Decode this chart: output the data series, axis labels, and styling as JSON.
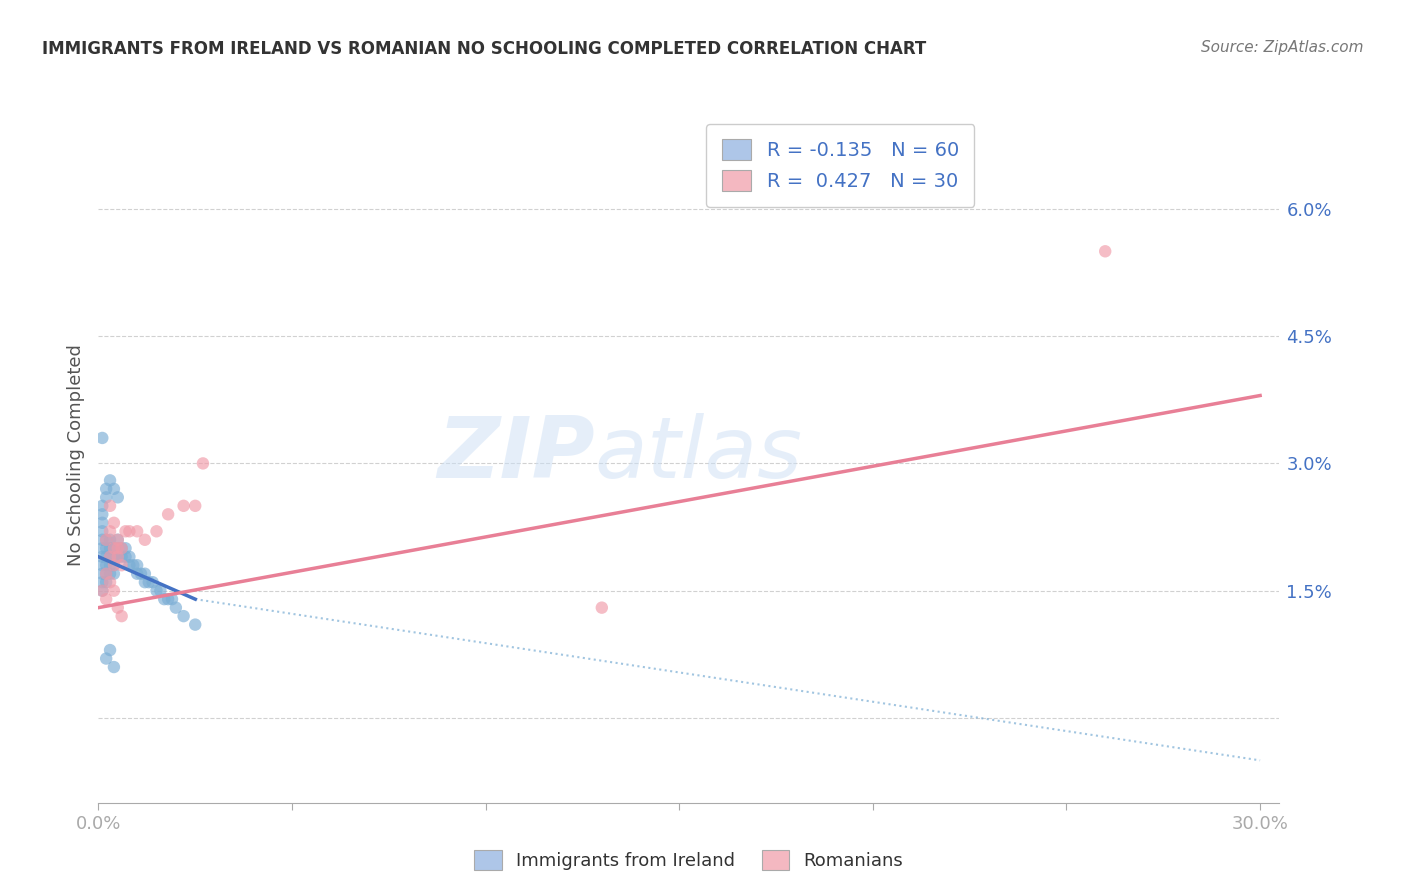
{
  "title": "IMMIGRANTS FROM IRELAND VS ROMANIAN NO SCHOOLING COMPLETED CORRELATION CHART",
  "source": "Source: ZipAtlas.com",
  "ylabel": "No Schooling Completed",
  "legend_entries": [
    {
      "label": "R = -0.135   N = 60",
      "color_fill": "#aec6e8"
    },
    {
      "label": "R =  0.427   N = 30",
      "color_fill": "#f4b8c1"
    }
  ],
  "bottom_legend": [
    {
      "label": "Immigrants from Ireland",
      "color_fill": "#aec6e8"
    },
    {
      "label": "Romanians",
      "color_fill": "#f4b8c1"
    }
  ],
  "y_ticks": [
    0.0,
    0.015,
    0.03,
    0.045,
    0.06
  ],
  "y_tick_labels": [
    "",
    "1.5%",
    "3.0%",
    "4.5%",
    "6.0%"
  ],
  "x_range": [
    0.0,
    0.305
  ],
  "y_range": [
    -0.01,
    0.072
  ],
  "blue_scatter_x": [
    0.001,
    0.001,
    0.001,
    0.001,
    0.001,
    0.001,
    0.001,
    0.001,
    0.002,
    0.002,
    0.002,
    0.002,
    0.002,
    0.002,
    0.003,
    0.003,
    0.003,
    0.003,
    0.003,
    0.004,
    0.004,
    0.004,
    0.004,
    0.005,
    0.005,
    0.005,
    0.006,
    0.006,
    0.007,
    0.007,
    0.008,
    0.008,
    0.009,
    0.01,
    0.01,
    0.011,
    0.012,
    0.012,
    0.013,
    0.014,
    0.015,
    0.016,
    0.017,
    0.018,
    0.019,
    0.02,
    0.022,
    0.025,
    0.001,
    0.001,
    0.001,
    0.002,
    0.002,
    0.003,
    0.004,
    0.005,
    0.001,
    0.002,
    0.003,
    0.004
  ],
  "blue_scatter_y": [
    0.018,
    0.019,
    0.02,
    0.021,
    0.022,
    0.017,
    0.016,
    0.015,
    0.018,
    0.019,
    0.02,
    0.021,
    0.017,
    0.016,
    0.019,
    0.02,
    0.021,
    0.018,
    0.017,
    0.02,
    0.019,
    0.018,
    0.017,
    0.019,
    0.02,
    0.021,
    0.02,
    0.019,
    0.019,
    0.02,
    0.018,
    0.019,
    0.018,
    0.018,
    0.017,
    0.017,
    0.016,
    0.017,
    0.016,
    0.016,
    0.015,
    0.015,
    0.014,
    0.014,
    0.014,
    0.013,
    0.012,
    0.011,
    0.025,
    0.024,
    0.023,
    0.026,
    0.027,
    0.028,
    0.027,
    0.026,
    0.033,
    0.007,
    0.008,
    0.006
  ],
  "pink_scatter_x": [
    0.001,
    0.002,
    0.003,
    0.004,
    0.005,
    0.006,
    0.002,
    0.003,
    0.004,
    0.005,
    0.006,
    0.007,
    0.003,
    0.004,
    0.005,
    0.008,
    0.01,
    0.012,
    0.015,
    0.018,
    0.022,
    0.025,
    0.027,
    0.13,
    0.26,
    0.002,
    0.003,
    0.004,
    0.005,
    0.006
  ],
  "pink_scatter_y": [
    0.015,
    0.017,
    0.019,
    0.018,
    0.02,
    0.02,
    0.021,
    0.022,
    0.02,
    0.019,
    0.018,
    0.022,
    0.025,
    0.023,
    0.021,
    0.022,
    0.022,
    0.021,
    0.022,
    0.024,
    0.025,
    0.025,
    0.03,
    0.013,
    0.055,
    0.014,
    0.016,
    0.015,
    0.013,
    0.012
  ],
  "blue_line_x": [
    0.0,
    0.025
  ],
  "blue_line_y": [
    0.019,
    0.014
  ],
  "blue_dot_line_x": [
    0.025,
    0.3
  ],
  "blue_dot_line_y": [
    0.014,
    -0.005
  ],
  "pink_line_x": [
    0.0,
    0.3
  ],
  "pink_line_y": [
    0.013,
    0.038
  ],
  "blue_dot_color": "#7aadd4",
  "pink_dot_color": "#f09aa8",
  "blue_line_color": "#4472c4",
  "pink_line_color": "#e87f96",
  "dot_line_color": "#7aadd4",
  "title_color": "#333333",
  "tick_color": "#4472c4"
}
